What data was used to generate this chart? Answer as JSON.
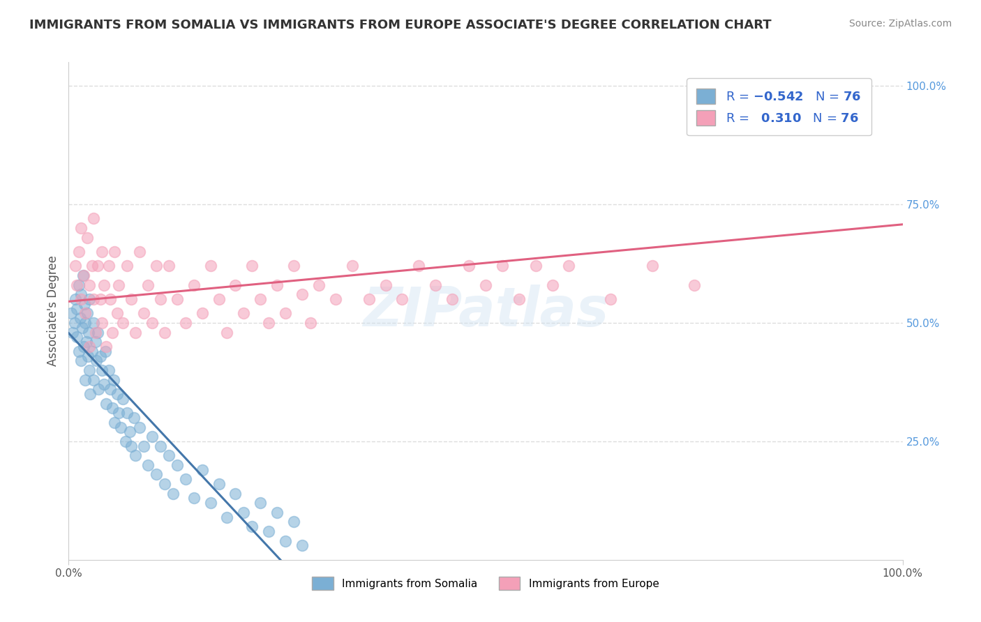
{
  "title": "IMMIGRANTS FROM SOMALIA VS IMMIGRANTS FROM EUROPE ASSOCIATE'S DEGREE CORRELATION CHART",
  "source": "Source: ZipAtlas.com",
  "ylabel": "Associate's Degree",
  "y_tick_labels": [
    "25.0%",
    "50.0%",
    "75.0%",
    "100.0%"
  ],
  "y_tick_values": [
    0.25,
    0.5,
    0.75,
    1.0
  ],
  "somalia_R": -0.542,
  "europe_R": 0.31,
  "N": 76,
  "somalia_color": "#7bafd4",
  "europe_color": "#f4a0b8",
  "trend_somalia_color": "#4477aa",
  "trend_europe_color": "#e06080",
  "background_color": "#ffffff",
  "grid_color": "#dddddd",
  "somalia_scatter": [
    [
      0.003,
      0.52
    ],
    [
      0.005,
      0.48
    ],
    [
      0.007,
      0.5
    ],
    [
      0.008,
      0.55
    ],
    [
      0.01,
      0.53
    ],
    [
      0.01,
      0.47
    ],
    [
      0.012,
      0.58
    ],
    [
      0.012,
      0.44
    ],
    [
      0.014,
      0.51
    ],
    [
      0.015,
      0.56
    ],
    [
      0.015,
      0.42
    ],
    [
      0.016,
      0.49
    ],
    [
      0.017,
      0.6
    ],
    [
      0.018,
      0.45
    ],
    [
      0.019,
      0.54
    ],
    [
      0.02,
      0.5
    ],
    [
      0.02,
      0.38
    ],
    [
      0.021,
      0.46
    ],
    [
      0.022,
      0.52
    ],
    [
      0.023,
      0.43
    ],
    [
      0.024,
      0.48
    ],
    [
      0.025,
      0.4
    ],
    [
      0.025,
      0.55
    ],
    [
      0.026,
      0.35
    ],
    [
      0.028,
      0.44
    ],
    [
      0.03,
      0.5
    ],
    [
      0.03,
      0.38
    ],
    [
      0.032,
      0.46
    ],
    [
      0.033,
      0.42
    ],
    [
      0.035,
      0.48
    ],
    [
      0.036,
      0.36
    ],
    [
      0.038,
      0.43
    ],
    [
      0.04,
      0.4
    ],
    [
      0.042,
      0.37
    ],
    [
      0.044,
      0.44
    ],
    [
      0.045,
      0.33
    ],
    [
      0.048,
      0.4
    ],
    [
      0.05,
      0.36
    ],
    [
      0.052,
      0.32
    ],
    [
      0.054,
      0.38
    ],
    [
      0.055,
      0.29
    ],
    [
      0.058,
      0.35
    ],
    [
      0.06,
      0.31
    ],
    [
      0.062,
      0.28
    ],
    [
      0.065,
      0.34
    ],
    [
      0.068,
      0.25
    ],
    [
      0.07,
      0.31
    ],
    [
      0.073,
      0.27
    ],
    [
      0.075,
      0.24
    ],
    [
      0.078,
      0.3
    ],
    [
      0.08,
      0.22
    ],
    [
      0.085,
      0.28
    ],
    [
      0.09,
      0.24
    ],
    [
      0.095,
      0.2
    ],
    [
      0.1,
      0.26
    ],
    [
      0.105,
      0.18
    ],
    [
      0.11,
      0.24
    ],
    [
      0.115,
      0.16
    ],
    [
      0.12,
      0.22
    ],
    [
      0.125,
      0.14
    ],
    [
      0.13,
      0.2
    ],
    [
      0.14,
      0.17
    ],
    [
      0.15,
      0.13
    ],
    [
      0.16,
      0.19
    ],
    [
      0.17,
      0.12
    ],
    [
      0.18,
      0.16
    ],
    [
      0.19,
      0.09
    ],
    [
      0.2,
      0.14
    ],
    [
      0.21,
      0.1
    ],
    [
      0.22,
      0.07
    ],
    [
      0.23,
      0.12
    ],
    [
      0.24,
      0.06
    ],
    [
      0.25,
      0.1
    ],
    [
      0.26,
      0.04
    ],
    [
      0.27,
      0.08
    ],
    [
      0.28,
      0.03
    ]
  ],
  "europe_scatter": [
    [
      0.008,
      0.62
    ],
    [
      0.01,
      0.58
    ],
    [
      0.012,
      0.65
    ],
    [
      0.015,
      0.55
    ],
    [
      0.015,
      0.7
    ],
    [
      0.018,
      0.6
    ],
    [
      0.02,
      0.52
    ],
    [
      0.022,
      0.68
    ],
    [
      0.025,
      0.58
    ],
    [
      0.025,
      0.45
    ],
    [
      0.028,
      0.62
    ],
    [
      0.03,
      0.55
    ],
    [
      0.03,
      0.72
    ],
    [
      0.032,
      0.48
    ],
    [
      0.035,
      0.62
    ],
    [
      0.038,
      0.55
    ],
    [
      0.04,
      0.5
    ],
    [
      0.04,
      0.65
    ],
    [
      0.042,
      0.58
    ],
    [
      0.045,
      0.45
    ],
    [
      0.048,
      0.62
    ],
    [
      0.05,
      0.55
    ],
    [
      0.052,
      0.48
    ],
    [
      0.055,
      0.65
    ],
    [
      0.058,
      0.52
    ],
    [
      0.06,
      0.58
    ],
    [
      0.065,
      0.5
    ],
    [
      0.07,
      0.62
    ],
    [
      0.075,
      0.55
    ],
    [
      0.08,
      0.48
    ],
    [
      0.085,
      0.65
    ],
    [
      0.09,
      0.52
    ],
    [
      0.095,
      0.58
    ],
    [
      0.1,
      0.5
    ],
    [
      0.105,
      0.62
    ],
    [
      0.11,
      0.55
    ],
    [
      0.115,
      0.48
    ],
    [
      0.12,
      0.62
    ],
    [
      0.13,
      0.55
    ],
    [
      0.14,
      0.5
    ],
    [
      0.15,
      0.58
    ],
    [
      0.16,
      0.52
    ],
    [
      0.17,
      0.62
    ],
    [
      0.18,
      0.55
    ],
    [
      0.19,
      0.48
    ],
    [
      0.2,
      0.58
    ],
    [
      0.21,
      0.52
    ],
    [
      0.22,
      0.62
    ],
    [
      0.23,
      0.55
    ],
    [
      0.24,
      0.5
    ],
    [
      0.25,
      0.58
    ],
    [
      0.26,
      0.52
    ],
    [
      0.27,
      0.62
    ],
    [
      0.28,
      0.56
    ],
    [
      0.29,
      0.5
    ],
    [
      0.3,
      0.58
    ],
    [
      0.32,
      0.55
    ],
    [
      0.34,
      0.62
    ],
    [
      0.36,
      0.55
    ],
    [
      0.38,
      0.58
    ],
    [
      0.4,
      0.55
    ],
    [
      0.42,
      0.62
    ],
    [
      0.44,
      0.58
    ],
    [
      0.46,
      0.55
    ],
    [
      0.48,
      0.62
    ],
    [
      0.5,
      0.58
    ],
    [
      0.52,
      0.62
    ],
    [
      0.54,
      0.55
    ],
    [
      0.56,
      0.62
    ],
    [
      0.58,
      0.58
    ],
    [
      0.6,
      0.62
    ],
    [
      0.65,
      0.55
    ],
    [
      0.7,
      0.62
    ],
    [
      0.75,
      0.58
    ],
    [
      0.87,
      0.97
    ],
    [
      0.92,
      0.97
    ]
  ],
  "xlim": [
    0.0,
    1.0
  ],
  "ylim": [
    0.0,
    1.05
  ]
}
